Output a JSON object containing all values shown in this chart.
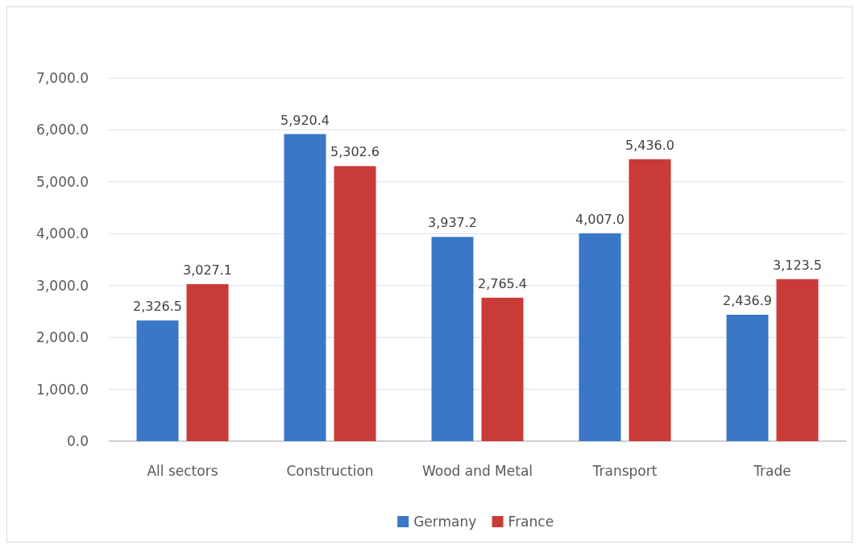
{
  "chart_data": {
    "type": "bar",
    "categories": [
      "All sectors",
      "Construction",
      "Wood and Metal",
      "Transport",
      "Trade"
    ],
    "series": [
      {
        "name": "Germany",
        "color": "#3a77c6",
        "values": [
          2326.5,
          5920.4,
          3937.2,
          4007.0,
          2436.9
        ],
        "value_labels": [
          "2,326.5",
          "5,920.4",
          "3,937.2",
          "4,007.0",
          "2,436.9"
        ]
      },
      {
        "name": "France",
        "color": "#c93b37",
        "values": [
          3027.1,
          5302.6,
          2765.4,
          5436.0,
          3123.5
        ],
        "value_labels": [
          "3,027.1",
          "5,302.6",
          "2,765.4",
          "5,436.0",
          "3,123.5"
        ]
      }
    ],
    "ylim": [
      0,
      7000
    ],
    "yticks": [
      {
        "value": 0,
        "label": "0.0"
      },
      {
        "value": 1000,
        "label": "1,000.0"
      },
      {
        "value": 2000,
        "label": "2,000.0"
      },
      {
        "value": 3000,
        "label": "3,000.0"
      },
      {
        "value": 4000,
        "label": "4,000.0"
      },
      {
        "value": 5000,
        "label": "5,000.0"
      },
      {
        "value": 6000,
        "label": "6,000.0"
      },
      {
        "value": 7000,
        "label": "7,000.0"
      }
    ],
    "grid": "y",
    "legend": "bottom"
  }
}
